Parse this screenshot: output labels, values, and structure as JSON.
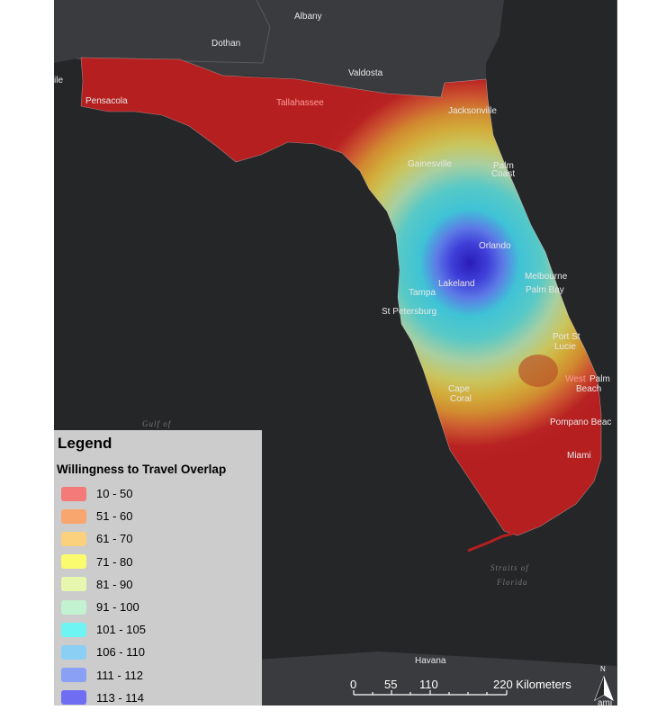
{
  "map": {
    "cities": [
      {
        "name": "Albany",
        "style": "dark"
      },
      {
        "name": "Dothan",
        "style": "dark"
      },
      {
        "name": "Valdosta",
        "style": "dark"
      },
      {
        "name": "Pensacola",
        "style": "dark"
      },
      {
        "name": "Tallahassee",
        "style": "red"
      },
      {
        "name": "Jacksonville",
        "style": "dark"
      },
      {
        "name": "Gainesville",
        "style": "dark"
      },
      {
        "name": "Palm",
        "style": "dark"
      },
      {
        "name": "Coast",
        "style": "dark"
      },
      {
        "name": "Orlando",
        "style": "dark"
      },
      {
        "name": "Lakeland",
        "style": "dark"
      },
      {
        "name": "Tampa",
        "style": "dark"
      },
      {
        "name": "St Petersburg",
        "style": "dark"
      },
      {
        "name": "Melbourne",
        "style": "dark"
      },
      {
        "name": "Palm Bay",
        "style": "dark"
      },
      {
        "name": "Port St",
        "style": "dark"
      },
      {
        "name": "Lucie",
        "style": "dark"
      },
      {
        "name": "West",
        "style": "red"
      },
      {
        "name": "Palm",
        "style": "dark"
      },
      {
        "name": "Beach",
        "style": "dark"
      },
      {
        "name": "Cape",
        "style": "dark"
      },
      {
        "name": "Coral",
        "style": "dark"
      },
      {
        "name": "Pompano Beac",
        "style": "dark"
      },
      {
        "name": "Miami",
        "style": "dark"
      },
      {
        "name": "Havana",
        "style": "dark"
      },
      {
        "name": "ile",
        "style": "dark"
      },
      {
        "name": "ami",
        "style": "dark"
      }
    ],
    "water_labels": [
      "Gulf of",
      "Straits of",
      "Florida"
    ]
  },
  "legend": {
    "title": "Legend",
    "subtitle": "Willingness to Travel Overlap",
    "items": [
      {
        "label": "10 - 50",
        "color": "#f47a7a"
      },
      {
        "label": "51 - 60",
        "color": "#f9a56e"
      },
      {
        "label": "61 - 70",
        "color": "#fbd17e"
      },
      {
        "label": "71 - 80",
        "color": "#fafb6e"
      },
      {
        "label": "81 - 90",
        "color": "#e8f7b0"
      },
      {
        "label": "91 - 100",
        "color": "#c3f2d0"
      },
      {
        "label": "101 - 105",
        "color": "#6ff4f4"
      },
      {
        "label": "106 - 110",
        "color": "#8ccff5"
      },
      {
        "label": "111 - 112",
        "color": "#8aa0f4"
      },
      {
        "label": "113 - 114",
        "color": "#6f6ef2"
      }
    ]
  },
  "scalebar": {
    "ticks": [
      "0",
      "55",
      "110",
      "220 Kilometers"
    ]
  },
  "north_arrow": {
    "label": "N",
    "icon": "north-arrow-icon"
  }
}
